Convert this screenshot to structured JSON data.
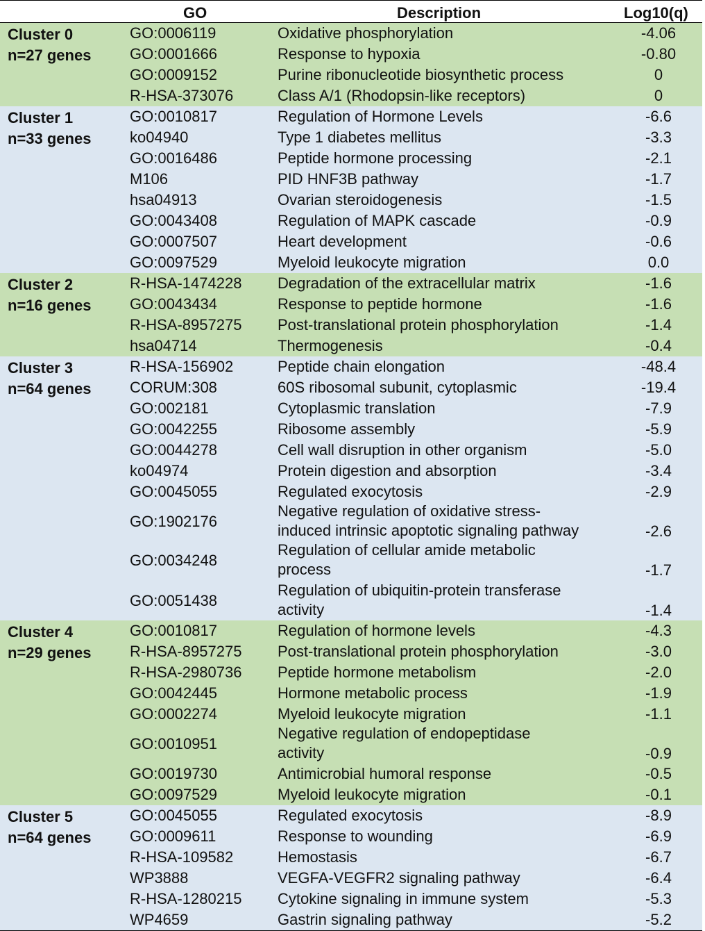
{
  "header": {
    "go": "GO",
    "description": "Description",
    "log": "Log10(q)"
  },
  "colors": {
    "green": "#c6dfb4",
    "blue": "#dce6f1"
  },
  "clusters": [
    {
      "name": "Cluster 0",
      "genes": "n=27 genes",
      "rows": [
        {
          "go": "GO:0006119",
          "desc": "Oxidative phosphorylation",
          "q": "-4.06"
        },
        {
          "go": "GO:0001666",
          "desc": "Response to hypoxia",
          "q": "-0.80"
        },
        {
          "go": "GO:0009152",
          "desc": "Purine ribonucleotide biosynthetic process",
          "q": "0"
        },
        {
          "go": "R-HSA-373076",
          "desc": "Class A/1 (Rhodopsin-like receptors)",
          "q": "0"
        }
      ]
    },
    {
      "name": "Cluster 1",
      "genes": "n=33 genes",
      "rows": [
        {
          "go": "GO:0010817",
          "desc": "Regulation of Hormone Levels",
          "q": "-6.6"
        },
        {
          "go": "ko04940",
          "desc": "Type 1 diabetes mellitus",
          "q": "-3.3"
        },
        {
          "go": "GO:0016486",
          "desc": "Peptide hormone processing",
          "q": "-2.1"
        },
        {
          "go": "M106",
          "desc": "PID HNF3B pathway",
          "q": "-1.7"
        },
        {
          "go": "hsa04913",
          "desc": "Ovarian steroidogenesis",
          "q": "-1.5"
        },
        {
          "go": "GO:0043408",
          "desc": "Regulation of MAPK cascade",
          "q": "-0.9"
        },
        {
          "go": "GO:0007507",
          "desc": "Heart development",
          "q": "-0.6"
        },
        {
          "go": "GO:0097529",
          "desc": "Myeloid leukocyte migration",
          "q": "0.0"
        }
      ]
    },
    {
      "name": "Cluster 2",
      "genes": "n=16 genes",
      "rows": [
        {
          "go": "R-HSA-1474228",
          "desc": "Degradation of the extracellular matrix",
          "q": "-1.6"
        },
        {
          "go": "GO:0043434",
          "desc": "Response to peptide hormone",
          "q": "-1.6"
        },
        {
          "go": "R-HSA-8957275",
          "desc": "Post-translational protein phosphorylation",
          "q": "-1.4"
        },
        {
          "go": "hsa04714",
          "desc": "Thermogenesis",
          "q": "-0.4"
        }
      ]
    },
    {
      "name": "Cluster 3",
      "genes": "n=64 genes",
      "rows": [
        {
          "go": "R-HSA-156902",
          "desc": "Peptide chain elongation",
          "q": "-48.4"
        },
        {
          "go": "CORUM:308",
          "desc": "60S ribosomal subunit, cytoplasmic",
          "q": "-19.4"
        },
        {
          "go": "GO:002181",
          "desc": "Cytoplasmic translation",
          "q": "-7.9"
        },
        {
          "go": "GO:0042255",
          "desc": "Ribosome assembly",
          "q": "-5.9"
        },
        {
          "go": "GO:0044278",
          "desc": "Cell wall disruption in other organism",
          "q": "-5.0"
        },
        {
          "go": "ko04974",
          "desc": "Protein digestion and absorption",
          "q": "-3.4"
        },
        {
          "go": "GO:0045055",
          "desc": "Regulated exocytosis",
          "q": "-2.9"
        },
        {
          "go": "GO:1902176",
          "desc": "Negative regulation of oxidative stress-",
          "desc2": "induced intrinsic apoptotic signaling pathway",
          "q": "-2.6"
        },
        {
          "go": "GO:0034248",
          "desc": "Regulation of cellular amide metabolic",
          "desc2": "process",
          "q": "-1.7"
        },
        {
          "go": "GO:0051438",
          "desc": "Regulation of ubiquitin-protein transferase",
          "desc2": "activity",
          "q": "-1.4"
        }
      ]
    },
    {
      "name": "Cluster 4",
      "genes": "n=29 genes",
      "rows": [
        {
          "go": "GO:0010817",
          "desc": "Regulation of hormone levels",
          "q": "-4.3"
        },
        {
          "go": "R-HSA-8957275",
          "desc": "Post-translational protein phosphorylation",
          "q": "-3.0"
        },
        {
          "go": "R-HSA-2980736",
          "desc": "Peptide hormone metabolism",
          "q": "-2.0"
        },
        {
          "go": "GO:0042445",
          "desc": "Hormone metabolic process",
          "q": "-1.9"
        },
        {
          "go": "GO:0002274",
          "desc": "Myeloid leukocyte migration",
          "q": "-1.1"
        },
        {
          "go": "GO:0010951",
          "desc": "Negative regulation of endopeptidase",
          "desc2": "activity",
          "q": "-0.9"
        },
        {
          "go": "GO:0019730",
          "desc": "Antimicrobial humoral response",
          "q": "-0.5"
        },
        {
          "go": "GO:0097529",
          "desc": "Myeloid leukocyte migration",
          "q": "-0.1"
        }
      ]
    },
    {
      "name": "Cluster 5",
      "genes": "n=64 genes",
      "rows": [
        {
          "go": "GO:0045055",
          "desc": "Regulated exocytosis",
          "q": "-8.9"
        },
        {
          "go": "GO:0009611",
          "desc": "Response to wounding",
          "q": "-6.9"
        },
        {
          "go": "R-HSA-109582",
          "desc": "Hemostasis",
          "q": "-6.7"
        },
        {
          "go": "WP3888",
          "desc": "VEGFA-VEGFR2 signaling pathway",
          "q": "-6.4"
        },
        {
          "go": "R-HSA-1280215",
          "desc": "Cytokine signaling in immune system",
          "q": "-5.3"
        },
        {
          "go": "WP4659",
          "desc": "Gastrin signaling pathway",
          "q": "-5.2"
        }
      ]
    }
  ]
}
